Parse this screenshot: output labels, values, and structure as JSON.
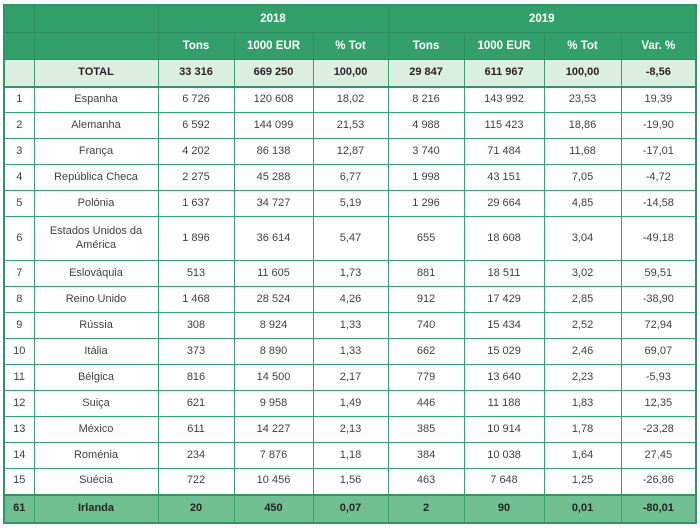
{
  "colors": {
    "header_green": "#33A06C",
    "grid_green": "#35A26E",
    "outer_border_green": "#2E9663",
    "total_row_bg": "#DCEEE1",
    "highlight_row_bg": "#72BE93",
    "header_text": "#FFFFFF",
    "data_text": "#3F3F3F"
  },
  "chart_data": {
    "type": "table",
    "title": "",
    "year_groups": [
      {
        "label": "2018",
        "span": 3
      },
      {
        "label": "2019",
        "span": 4
      }
    ],
    "sub_columns": [
      "Tons",
      "1000 EUR",
      "% Tot",
      "Tons",
      "1000 EUR",
      "% Tot",
      "Var. %"
    ],
    "rows": [
      {
        "rank": "",
        "name": "TOTAL",
        "cells": [
          "33 316",
          "669 250",
          "100,00",
          "29 847",
          "611 967",
          "100,00",
          "-8,56"
        ],
        "highlight": "total"
      },
      {
        "rank": "1",
        "name": "Espanha",
        "cells": [
          "6 726",
          "120 608",
          "18,02",
          "8 216",
          "143 992",
          "23,53",
          "19,39"
        ]
      },
      {
        "rank": "2",
        "name": "Alemanha",
        "cells": [
          "6 592",
          "144 099",
          "21,53",
          "4 988",
          "115 423",
          "18,86",
          "-19,90"
        ]
      },
      {
        "rank": "3",
        "name": "França",
        "cells": [
          "4 202",
          "86 138",
          "12,87",
          "3 740",
          "71 484",
          "11,68",
          "-17,01"
        ]
      },
      {
        "rank": "4",
        "name": "República Checa",
        "cells": [
          "2 275",
          "45 288",
          "6,77",
          "1 998",
          "43 151",
          "7,05",
          "-4,72"
        ]
      },
      {
        "rank": "5",
        "name": "Polónia",
        "cells": [
          "1 637",
          "34 727",
          "5,19",
          "1 296",
          "29 664",
          "4,85",
          "-14,58"
        ]
      },
      {
        "rank": "6",
        "name": "Estados Unidos da América",
        "cells": [
          "1 896",
          "36 614",
          "5,47",
          "655",
          "18 608",
          "3,04",
          "-49,18"
        ],
        "tall": true
      },
      {
        "rank": "7",
        "name": "Eslováquia",
        "cells": [
          "513",
          "11 605",
          "1,73",
          "881",
          "18 511",
          "3,02",
          "59,51"
        ]
      },
      {
        "rank": "8",
        "name": "Reino Unido",
        "cells": [
          "1 468",
          "28 524",
          "4,26",
          "912",
          "17 429",
          "2,85",
          "-38,90"
        ]
      },
      {
        "rank": "9",
        "name": "Rússia",
        "cells": [
          "308",
          "8 924",
          "1,33",
          "740",
          "15 434",
          "2,52",
          "72,94"
        ]
      },
      {
        "rank": "10",
        "name": "Itália",
        "cells": [
          "373",
          "8 890",
          "1,33",
          "662",
          "15 029",
          "2,46",
          "69,07"
        ]
      },
      {
        "rank": "11",
        "name": "Bélgica",
        "cells": [
          "816",
          "14 500",
          "2,17",
          "779",
          "13 640",
          "2,23",
          "-5,93"
        ]
      },
      {
        "rank": "12",
        "name": "Suiça",
        "cells": [
          "621",
          "9 958",
          "1,49",
          "446",
          "11 188",
          "1,83",
          "12,35"
        ]
      },
      {
        "rank": "13",
        "name": "México",
        "cells": [
          "611",
          "14 227",
          "2,13",
          "385",
          "10 914",
          "1,78",
          "-23,28"
        ]
      },
      {
        "rank": "14",
        "name": "Roménia",
        "cells": [
          "234",
          "7 876",
          "1,18",
          "384",
          "10 038",
          "1,64",
          "27,45"
        ]
      },
      {
        "rank": "15",
        "name": "Suécia",
        "cells": [
          "722",
          "10 456",
          "1,56",
          "463",
          "7 648",
          "1,25",
          "-26,86"
        ]
      },
      {
        "rank": "61",
        "name": "Irlanda",
        "cells": [
          "20",
          "450",
          "0,07",
          "2",
          "90",
          "0,01",
          "-80,01"
        ],
        "highlight": "footer"
      }
    ]
  }
}
